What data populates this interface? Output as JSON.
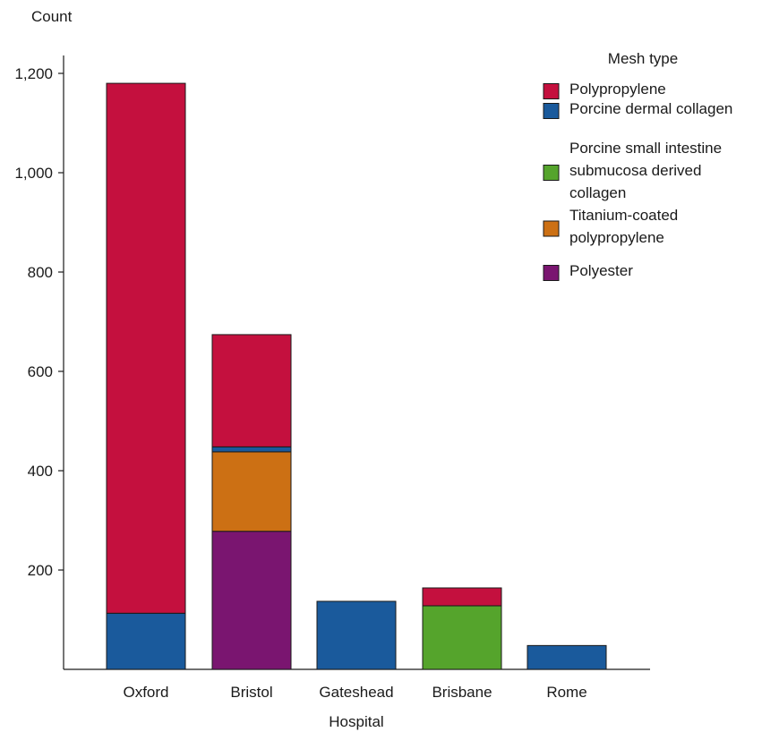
{
  "chart_data": {
    "type": "bar",
    "stacked": true,
    "ylabel": "Count",
    "xlabel": "Hospital",
    "ylim": [
      0,
      1200
    ],
    "yticks": [
      200,
      400,
      600,
      800,
      1000,
      1200
    ],
    "ytick_labels": [
      "200",
      "400",
      "600",
      "800",
      "1,000",
      "1,200"
    ],
    "categories": [
      "Oxford",
      "Bristol",
      "Gateshead",
      "Brisbane",
      "Rome"
    ],
    "legend_title": "Mesh type",
    "legend_position": "top-right",
    "series": [
      {
        "name": "Polyester",
        "color": "#7a1570",
        "values": [
          0,
          278,
          0,
          0,
          0
        ]
      },
      {
        "name": "Titanium-coated polypropylene",
        "color": "#cc7014",
        "values": [
          0,
          160,
          0,
          0,
          0
        ]
      },
      {
        "name": "Porcine small intestine submucosa derived collagen",
        "color": "#55a42c",
        "values": [
          0,
          0,
          0,
          128,
          0
        ]
      },
      {
        "name": "Porcine dermal collagen",
        "color": "#1a5a9c",
        "values": [
          113,
          10,
          137,
          0,
          48
        ]
      },
      {
        "name": "Polypropylene",
        "color": "#c4103e",
        "values": [
          1067,
          226,
          0,
          36,
          0
        ]
      }
    ],
    "legend": [
      {
        "lines": [
          "Polypropylene"
        ],
        "color": "#c4103e"
      },
      {
        "lines": [
          "Porcine dermal collagen"
        ],
        "color": "#1a5a9c"
      },
      {
        "lines": [
          "Porcine small intestine",
          "submucosa derived",
          "collagen"
        ],
        "color": "#55a42c"
      },
      {
        "lines": [
          "Titanium-coated",
          "polypropylene"
        ],
        "color": "#cc7014"
      },
      {
        "lines": [
          "Polyester"
        ],
        "color": "#7a1570"
      }
    ]
  }
}
